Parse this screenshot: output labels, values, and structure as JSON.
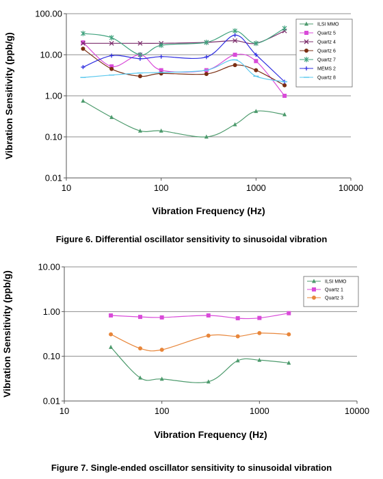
{
  "chart_data": [
    {
      "type": "line",
      "xscale": "log",
      "yscale": "log",
      "xlim": [
        10,
        10000
      ],
      "ylim": [
        0.01,
        100
      ],
      "xticks": [
        "10",
        "100",
        "1000",
        "10000"
      ],
      "yticks": [
        "0.01",
        "0.10",
        "1.00",
        "10.00",
        "100.00"
      ],
      "xlabel": "Vibration Frequency (Hz)",
      "ylabel": "Vibration Sensitivity (ppb/g)",
      "legend_position": "top-right",
      "grid": "horizontal",
      "series": [
        {
          "name": "ILSI MMO",
          "color": "#4c9a6c",
          "marker": "triangle",
          "x": [
            15,
            30,
            60,
            100,
            300,
            600,
            1000,
            2000
          ],
          "y": [
            0.75,
            0.3,
            0.14,
            0.14,
            0.1,
            0.2,
            0.42,
            0.35
          ]
        },
        {
          "name": "Quartz 5",
          "color": "#d94bd9",
          "marker": "square",
          "x": [
            15,
            30,
            60,
            100,
            300,
            600,
            1000,
            2000
          ],
          "y": [
            20,
            5.2,
            10,
            4.2,
            4.2,
            10,
            7,
            1.0
          ]
        },
        {
          "name": "Quartz 4",
          "color": "#7b2d6b",
          "marker": "x",
          "x": [
            15,
            30,
            60,
            100,
            300,
            600,
            1000,
            2000
          ],
          "y": [
            19,
            19,
            19,
            19,
            20,
            22,
            19,
            38
          ]
        },
        {
          "name": "Quartz 6",
          "color": "#7a2e12",
          "marker": "circle",
          "x": [
            15,
            30,
            60,
            100,
            300,
            600,
            1000,
            2000
          ],
          "y": [
            14,
            4.5,
            3.0,
            3.5,
            3.4,
            5.6,
            4.2,
            1.8
          ]
        },
        {
          "name": "Quartz 7",
          "color": "#3fa27d",
          "marker": "star",
          "x": [
            15,
            30,
            60,
            100,
            300,
            600,
            1000,
            2000
          ],
          "y": [
            33,
            26,
            10,
            17,
            20,
            38,
            19,
            44
          ]
        },
        {
          "name": "MEMS 2",
          "color": "#2c2ce0",
          "marker": "plus",
          "x": [
            15,
            30,
            60,
            100,
            300,
            600,
            1000,
            2000
          ],
          "y": [
            5.0,
            9.5,
            8.0,
            9.0,
            8.8,
            30,
            10,
            2.2
          ]
        },
        {
          "name": "Quartz 8",
          "color": "#5bc8ee",
          "marker": "dash",
          "x": [
            15,
            30,
            60,
            100,
            300,
            600,
            1000,
            2000
          ],
          "y": [
            2.8,
            3.2,
            3.6,
            3.7,
            4.2,
            7.5,
            3.0,
            2.2
          ]
        }
      ]
    },
    {
      "type": "line",
      "xscale": "log",
      "yscale": "log",
      "xlim": [
        10,
        10000
      ],
      "ylim": [
        0.01,
        10
      ],
      "xticks": [
        "10",
        "100",
        "1000",
        "10000"
      ],
      "yticks": [
        "0.01",
        "0.10",
        "1.00",
        "10.00"
      ],
      "xlabel": "Vibration Frequency (Hz)",
      "ylabel": "Vibration Sensitivity (ppb/g)",
      "legend_position": "top-right",
      "grid": "horizontal",
      "series": [
        {
          "name": "ILSI MMO",
          "color": "#4c9a6c",
          "marker": "triangle",
          "x": [
            30,
            60,
            100,
            300,
            600,
            1000,
            2000
          ],
          "y": [
            0.16,
            0.033,
            0.031,
            0.027,
            0.08,
            0.082,
            0.071
          ]
        },
        {
          "name": "Quartz 1",
          "color": "#d94bd9",
          "marker": "square",
          "x": [
            30,
            60,
            100,
            300,
            600,
            1000,
            2000
          ],
          "y": [
            0.82,
            0.76,
            0.74,
            0.82,
            0.71,
            0.72,
            0.92
          ]
        },
        {
          "name": "Quartz 3",
          "color": "#e8863a",
          "marker": "circle",
          "x": [
            30,
            60,
            100,
            300,
            600,
            1000,
            2000
          ],
          "y": [
            0.31,
            0.15,
            0.14,
            0.29,
            0.28,
            0.33,
            0.31
          ]
        }
      ]
    }
  ],
  "captions": {
    "figure6": "Figure 6. Differential oscillator sensitivity to sinusoidal vibration",
    "figure7": "Figure 7. Single-ended oscillator sensitivity to sinusoidal vibration"
  }
}
